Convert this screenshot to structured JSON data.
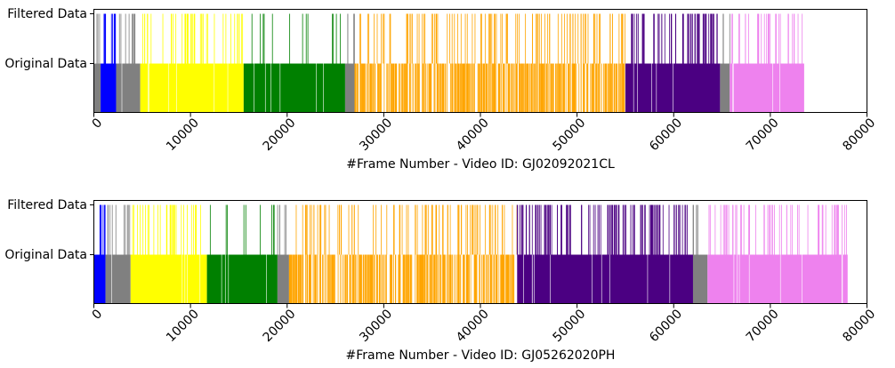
{
  "chart_data": [
    {
      "type": "event-strip",
      "xlabel": "#Frame Number - Video ID: GJ02092021CL",
      "ylabel": "",
      "title": "",
      "rows": [
        "Original Data",
        "Filtered Data"
      ],
      "xlim": [
        0,
        80000
      ],
      "xticks": [
        0,
        10000,
        20000,
        30000,
        40000,
        50000,
        60000,
        70000,
        80000
      ],
      "grid": false,
      "original_segments": [
        {
          "class": "gray",
          "start": 0,
          "end": 700
        },
        {
          "class": "blue",
          "start": 700,
          "end": 2300
        },
        {
          "class": "gray",
          "start": 2300,
          "end": 4800
        },
        {
          "class": "yellow",
          "start": 4800,
          "end": 15500
        },
        {
          "class": "green",
          "start": 15500,
          "end": 26000
        },
        {
          "class": "gray",
          "start": 26000,
          "end": 27000
        },
        {
          "class": "orange",
          "start": 27000,
          "end": 55000
        },
        {
          "class": "indigo",
          "start": 55000,
          "end": 64800
        },
        {
          "class": "gray",
          "start": 64800,
          "end": 65800
        },
        {
          "class": "violet",
          "start": 65800,
          "end": 73500
        }
      ],
      "filtered_segments": [
        {
          "class": "gray",
          "start": 0,
          "end": 700
        },
        {
          "class": "blue",
          "start": 700,
          "end": 2300
        },
        {
          "class": "gray",
          "start": 2300,
          "end": 4800
        },
        {
          "class": "yellow",
          "start": 4800,
          "end": 15500
        },
        {
          "class": "green",
          "start": 15500,
          "end": 26000
        },
        {
          "class": "gray",
          "start": 26000,
          "end": 27000
        },
        {
          "class": "orange",
          "start": 27000,
          "end": 55000
        },
        {
          "class": "indigo",
          "start": 55000,
          "end": 64800
        },
        {
          "class": "gray",
          "start": 64800,
          "end": 65800
        },
        {
          "class": "violet",
          "start": 65800,
          "end": 73500
        }
      ]
    },
    {
      "type": "event-strip",
      "xlabel": "#Frame Number - Video ID: GJ05262020PH",
      "ylabel": "",
      "title": "",
      "rows": [
        "Original Data",
        "Filtered Data"
      ],
      "xlim": [
        0,
        80000
      ],
      "xticks": [
        0,
        10000,
        20000,
        30000,
        40000,
        50000,
        60000,
        70000,
        80000
      ],
      "grid": false,
      "original_segments": [
        {
          "class": "blue",
          "start": 0,
          "end": 1200
        },
        {
          "class": "gray",
          "start": 1200,
          "end": 3800
        },
        {
          "class": "yellow",
          "start": 3800,
          "end": 11700
        },
        {
          "class": "green",
          "start": 11700,
          "end": 19000
        },
        {
          "class": "gray",
          "start": 19000,
          "end": 20200
        },
        {
          "class": "orange",
          "start": 20200,
          "end": 43800
        },
        {
          "class": "indigo",
          "start": 43800,
          "end": 62000
        },
        {
          "class": "gray",
          "start": 62000,
          "end": 63500
        },
        {
          "class": "violet",
          "start": 63500,
          "end": 78000
        }
      ],
      "filtered_segments": [
        {
          "class": "blue",
          "start": 0,
          "end": 1200
        },
        {
          "class": "gray",
          "start": 1200,
          "end": 3800
        },
        {
          "class": "yellow",
          "start": 3800,
          "end": 11700
        },
        {
          "class": "green",
          "start": 11700,
          "end": 19000
        },
        {
          "class": "gray",
          "start": 19000,
          "end": 20200
        },
        {
          "class": "orange",
          "start": 20200,
          "end": 43800
        },
        {
          "class": "indigo",
          "start": 43800,
          "end": 62000
        },
        {
          "class": "gray",
          "start": 62000,
          "end": 63500
        },
        {
          "class": "violet",
          "start": 63500,
          "end": 78000
        }
      ]
    }
  ],
  "colors": {
    "gray": "#808080",
    "blue": "#0000ff",
    "yellow": "#ffff00",
    "green": "#008000",
    "orange": "#ffa500",
    "indigo": "#4b0082",
    "violet": "#ee82ee"
  }
}
